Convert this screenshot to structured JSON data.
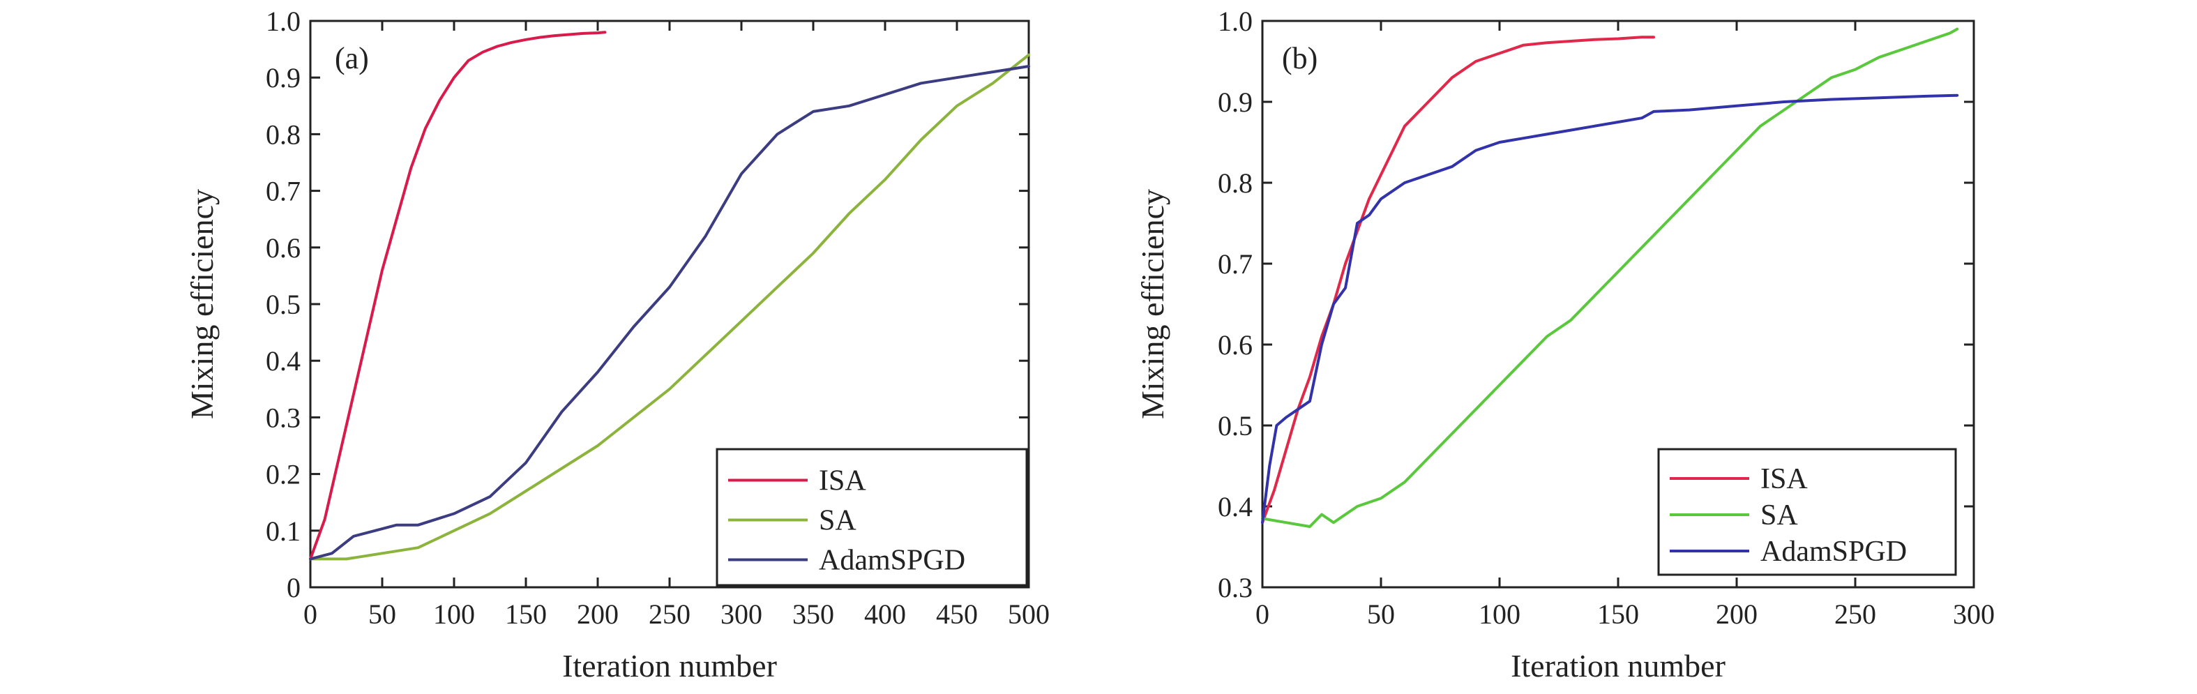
{
  "chart_data": [
    {
      "type": "line",
      "panel_label": "(a)",
      "xlabel": "Iteration number",
      "ylabel": "Mixing efficiency",
      "xlim": [
        0,
        500
      ],
      "ylim": [
        0,
        1.0
      ],
      "x_ticks": [
        0,
        50,
        100,
        150,
        200,
        250,
        300,
        350,
        400,
        450,
        500
      ],
      "x_tick_labels": [
        "0",
        "50",
        "100",
        "150",
        "200",
        "250",
        "300",
        "350",
        "400",
        "450",
        "500"
      ],
      "y_ticks": [
        0,
        0.1,
        0.2,
        0.3,
        0.4,
        0.5,
        0.6,
        0.7,
        0.8,
        0.9,
        1.0
      ],
      "y_tick_labels": [
        "0",
        "0.1",
        "0.2",
        "0.3",
        "0.4",
        "0.5",
        "0.6",
        "0.7",
        "0.8",
        "0.9",
        "1.0"
      ],
      "grid": false,
      "legend_position": "bottom-right",
      "series": [
        {
          "name": "ISA",
          "color": "#d81b4a",
          "x": [
            0,
            10,
            20,
            30,
            40,
            50,
            60,
            70,
            80,
            90,
            100,
            110,
            120,
            130,
            140,
            150,
            160,
            170,
            180,
            190,
            200,
            205
          ],
          "y": [
            0.05,
            0.12,
            0.23,
            0.34,
            0.45,
            0.56,
            0.65,
            0.74,
            0.81,
            0.86,
            0.9,
            0.93,
            0.945,
            0.955,
            0.962,
            0.967,
            0.971,
            0.974,
            0.976,
            0.978,
            0.979,
            0.98
          ]
        },
        {
          "name": "SA",
          "color": "#8cb43c",
          "x": [
            0,
            25,
            50,
            75,
            100,
            125,
            150,
            175,
            200,
            225,
            250,
            275,
            300,
            325,
            350,
            375,
            400,
            425,
            450,
            475,
            500
          ],
          "y": [
            0.05,
            0.05,
            0.06,
            0.07,
            0.1,
            0.13,
            0.17,
            0.21,
            0.25,
            0.3,
            0.35,
            0.41,
            0.47,
            0.53,
            0.59,
            0.66,
            0.72,
            0.79,
            0.85,
            0.89,
            0.94
          ]
        },
        {
          "name": "AdamSPGD",
          "color": "#3c3c82",
          "x": [
            0,
            15,
            30,
            45,
            60,
            75,
            100,
            125,
            150,
            175,
            200,
            225,
            250,
            275,
            300,
            325,
            350,
            375,
            400,
            425,
            450,
            475,
            500
          ],
          "y": [
            0.05,
            0.06,
            0.09,
            0.1,
            0.11,
            0.11,
            0.13,
            0.16,
            0.22,
            0.31,
            0.38,
            0.46,
            0.53,
            0.62,
            0.73,
            0.8,
            0.84,
            0.85,
            0.87,
            0.89,
            0.9,
            0.91,
            0.92
          ]
        }
      ]
    },
    {
      "type": "line",
      "panel_label": "(b)",
      "xlabel": "Iteration number",
      "ylabel": "Mixing efficiency",
      "xlim": [
        0,
        300
      ],
      "ylim": [
        0.3,
        1.0
      ],
      "x_ticks": [
        0,
        50,
        100,
        150,
        200,
        250,
        300
      ],
      "x_tick_labels": [
        "0",
        "50",
        "100",
        "150",
        "200",
        "250",
        "300"
      ],
      "y_ticks": [
        0.3,
        0.4,
        0.5,
        0.6,
        0.7,
        0.8,
        0.9,
        1.0
      ],
      "y_tick_labels": [
        "0.3",
        "0.4",
        "0.5",
        "0.6",
        "0.7",
        "0.8",
        "0.9",
        "1.0"
      ],
      "grid": false,
      "legend_position": "bottom-right",
      "series": [
        {
          "name": "ISA",
          "color": "#e0294a",
          "x": [
            0,
            5,
            10,
            15,
            20,
            25,
            30,
            35,
            40,
            45,
            50,
            55,
            60,
            70,
            80,
            90,
            100,
            110,
            120,
            130,
            140,
            150,
            160,
            165
          ],
          "y": [
            0.38,
            0.42,
            0.47,
            0.52,
            0.56,
            0.61,
            0.65,
            0.7,
            0.74,
            0.78,
            0.81,
            0.84,
            0.87,
            0.9,
            0.93,
            0.95,
            0.96,
            0.97,
            0.973,
            0.975,
            0.977,
            0.978,
            0.98,
            0.98
          ]
        },
        {
          "name": "SA",
          "color": "#5ac83c",
          "x": [
            0,
            10,
            20,
            25,
            30,
            40,
            50,
            60,
            70,
            80,
            90,
            100,
            110,
            120,
            130,
            140,
            150,
            160,
            170,
            180,
            190,
            200,
            210,
            220,
            230,
            240,
            250,
            260,
            270,
            280,
            290,
            293
          ],
          "y": [
            0.385,
            0.38,
            0.375,
            0.39,
            0.38,
            0.4,
            0.41,
            0.43,
            0.46,
            0.49,
            0.52,
            0.55,
            0.58,
            0.61,
            0.63,
            0.66,
            0.69,
            0.72,
            0.75,
            0.78,
            0.81,
            0.84,
            0.87,
            0.89,
            0.91,
            0.93,
            0.94,
            0.955,
            0.965,
            0.975,
            0.985,
            0.99
          ]
        },
        {
          "name": "AdamSPGD",
          "color": "#3232aa",
          "x": [
            0,
            3,
            6,
            10,
            15,
            20,
            25,
            30,
            35,
            40,
            45,
            50,
            60,
            70,
            80,
            90,
            100,
            110,
            120,
            130,
            140,
            150,
            160,
            165,
            180,
            200,
            220,
            240,
            260,
            280,
            293
          ],
          "y": [
            0.38,
            0.45,
            0.5,
            0.51,
            0.52,
            0.53,
            0.6,
            0.65,
            0.67,
            0.75,
            0.76,
            0.78,
            0.8,
            0.81,
            0.82,
            0.84,
            0.85,
            0.855,
            0.86,
            0.865,
            0.87,
            0.875,
            0.88,
            0.888,
            0.89,
            0.895,
            0.9,
            0.903,
            0.905,
            0.907,
            0.908
          ]
        }
      ]
    }
  ]
}
